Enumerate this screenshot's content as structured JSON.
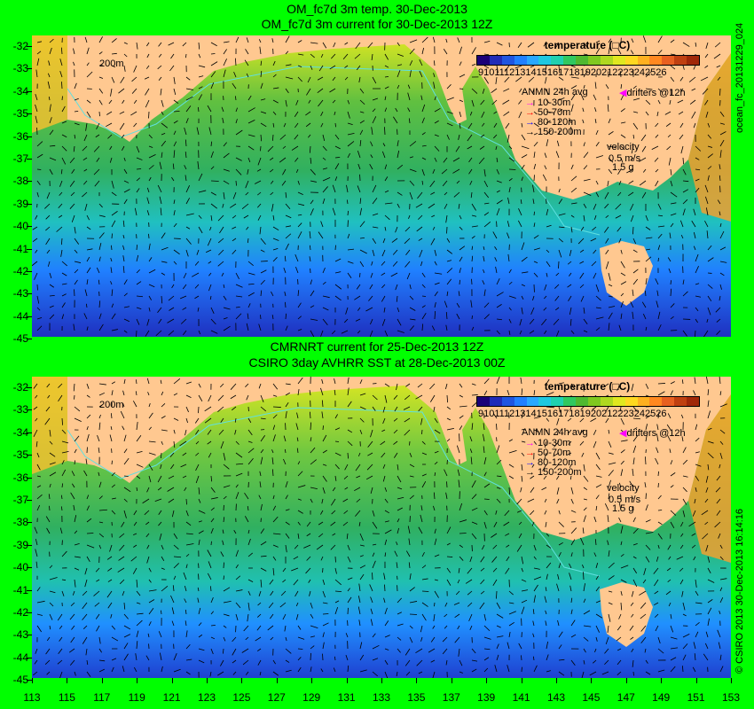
{
  "top": {
    "title1": "OM_fc7d 3m temp. 30-Dec-2013",
    "title2": "OM_fc7d 3m current for 30-Dec-2013 12Z",
    "side_label": "ocean_fc_20131229_024"
  },
  "bottom": {
    "title1": "CMRNRT current for 25-Dec-2013 12Z",
    "title2": "CSIRO 3day AVHRR SST at 28-Dec-2013 00Z",
    "side_label": "© CSIRO 2013   30-Dec-2013 16:14:16"
  },
  "legend": {
    "colorbar_title": "temperature (□C)",
    "colorbar_ticks": "9101112131415161718192021222324252​6",
    "colorbar_colors": [
      "#1a0078",
      "#1f2bb8",
      "#1f55e0",
      "#2080ff",
      "#28a8ff",
      "#20c8e0",
      "#20d0b0",
      "#30c860",
      "#50b830",
      "#80c820",
      "#b0d820",
      "#e0e820",
      "#ffd820",
      "#ffb020",
      "#ff8820",
      "#e86020",
      "#c04010",
      "#a02808"
    ],
    "anmn_title": "ANMN 24h avg",
    "drifters": "drifters @12h",
    "depths": [
      {
        "label": "10-30m",
        "color": "#ff00ff"
      },
      {
        "label": "50-70m",
        "color": "#ff0000"
      },
      {
        "label": "80-120m",
        "color": "#0000ff"
      },
      {
        "label": "150-200m",
        "color": "#000000"
      }
    ],
    "velocity_title": "velocity",
    "velocity_vals": "0.5 m/s",
    "velocity_vals2": "1.5 g",
    "isobath_label": "200m"
  },
  "axes": {
    "y_ticks": [
      "-32",
      "-33",
      "-34",
      "-35",
      "-36",
      "-37",
      "-38",
      "-39",
      "-40",
      "-41",
      "-42",
      "-43",
      "-44",
      "-45"
    ],
    "x_ticks": [
      "113",
      "115",
      "117",
      "119",
      "121",
      "123",
      "125",
      "127",
      "129",
      "131",
      "133",
      "135",
      "137",
      "139",
      "141",
      "143",
      "145",
      "147",
      "149",
      "151",
      "153"
    ]
  }
}
